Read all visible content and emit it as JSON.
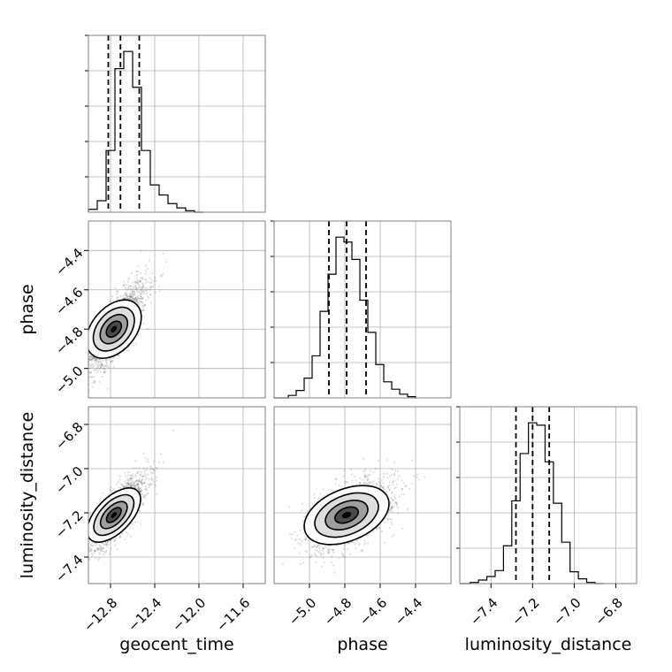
{
  "chart_data": {
    "type": "corner",
    "parameters": [
      "geocent_time",
      "phase",
      "luminosity_distance"
    ],
    "grid": true,
    "marginals": [
      {
        "parameter": "geocent_time",
        "xlim": [
          -13.0,
          -11.4
        ],
        "bin_edges": [
          -13.0,
          -12.92,
          -12.84,
          -12.76,
          -12.68,
          -12.6,
          -12.52,
          -12.44,
          -12.36,
          -12.28,
          -12.2,
          -12.12,
          -12.04,
          -11.96
        ],
        "counts": [
          2,
          8,
          43,
          100,
          112,
          87,
          43,
          19,
          12,
          6,
          3,
          1,
          0
        ],
        "quantiles": [
          -12.82,
          -12.71,
          -12.54
        ]
      },
      {
        "parameter": "phase",
        "xlim": [
          -5.2,
          -4.2
        ],
        "bin_edges": [
          -5.12,
          -5.075,
          -5.03,
          -4.985,
          -4.94,
          -4.895,
          -4.85,
          -4.805,
          -4.76,
          -4.715,
          -4.67,
          -4.625,
          -4.58,
          -4.535,
          -4.49,
          -4.445,
          -4.4
        ],
        "counts": [
          2,
          6,
          16,
          34,
          70,
          100,
          130,
          126,
          112,
          79,
          53,
          27,
          13,
          7,
          3,
          1
        ],
        "quantiles": [
          -4.89,
          -4.79,
          -4.68
        ]
      },
      {
        "parameter": "luminosity_distance",
        "xlim": [
          -7.55,
          -6.7
        ],
        "bin_edges": [
          -7.5,
          -7.46,
          -7.42,
          -7.38,
          -7.34,
          -7.3,
          -7.26,
          -7.22,
          -7.18,
          -7.14,
          -7.1,
          -7.06,
          -7.02,
          -6.98,
          -6.94,
          -6.9,
          -6.86
        ],
        "counts": [
          1,
          3,
          6,
          11,
          32,
          70,
          110,
          136,
          134,
          103,
          68,
          35,
          10,
          4,
          1,
          0
        ],
        "quantiles": [
          -7.28,
          -7.2,
          -7.12
        ]
      }
    ],
    "joints": [
      {
        "x": "geocent_time",
        "y": "phase",
        "xlim": [
          -13.0,
          -11.4
        ],
        "ylim": [
          -5.15,
          -4.25
        ],
        "center": [
          -12.77,
          -4.8
        ],
        "sigma": [
          0.11,
          0.1
        ],
        "rho": 0.72,
        "n_points": 1800
      },
      {
        "x": "geocent_time",
        "y": "luminosity_distance",
        "xlim": [
          -13.0,
          -11.4
        ],
        "ylim": [
          -7.52,
          -6.72
        ],
        "center": [
          -12.77,
          -7.21
        ],
        "sigma": [
          0.11,
          0.075
        ],
        "rho": 0.75,
        "n_points": 1800
      },
      {
        "x": "phase",
        "y": "luminosity_distance",
        "xlim": [
          -5.2,
          -4.2
        ],
        "ylim": [
          -7.52,
          -6.72
        ],
        "center": [
          -4.79,
          -7.21
        ],
        "sigma": [
          0.1,
          0.075
        ],
        "rho": 0.45,
        "n_points": 1800
      }
    ],
    "x_ticks": {
      "geocent_time": [
        {
          "v": -12.8,
          "label": "−12.8"
        },
        {
          "v": -12.4,
          "label": "−12.4"
        },
        {
          "v": -12.0,
          "label": "−12.0"
        },
        {
          "v": -11.6,
          "label": "−11.6"
        }
      ],
      "phase": [
        {
          "v": -5.0,
          "label": "−5.0"
        },
        {
          "v": -4.8,
          "label": "−4.8"
        },
        {
          "v": -4.6,
          "label": "−4.6"
        },
        {
          "v": -4.4,
          "label": "−4.4"
        }
      ],
      "luminosity_distance": [
        {
          "v": -7.4,
          "label": "−7.4"
        },
        {
          "v": -7.2,
          "label": "−7.2"
        },
        {
          "v": -7.0,
          "label": "−7.0"
        },
        {
          "v": -6.8,
          "label": "−6.8"
        }
      ]
    },
    "y_ticks": {
      "phase": [
        {
          "v": -4.4,
          "label": "−4.4"
        },
        {
          "v": -4.6,
          "label": "−4.6"
        },
        {
          "v": -4.8,
          "label": "−4.8"
        },
        {
          "v": -5.0,
          "label": "−5.0"
        }
      ],
      "luminosity_distance": [
        {
          "v": -6.8,
          "label": "−6.8"
        },
        {
          "v": -7.0,
          "label": "−7.0"
        },
        {
          "v": -7.2,
          "label": "−7.2"
        },
        {
          "v": -7.4,
          "label": "−7.4"
        }
      ]
    },
    "colors": {
      "line": "#000000",
      "grid": "#b0b0b0",
      "points": "#000000",
      "frame": "#808080"
    }
  }
}
